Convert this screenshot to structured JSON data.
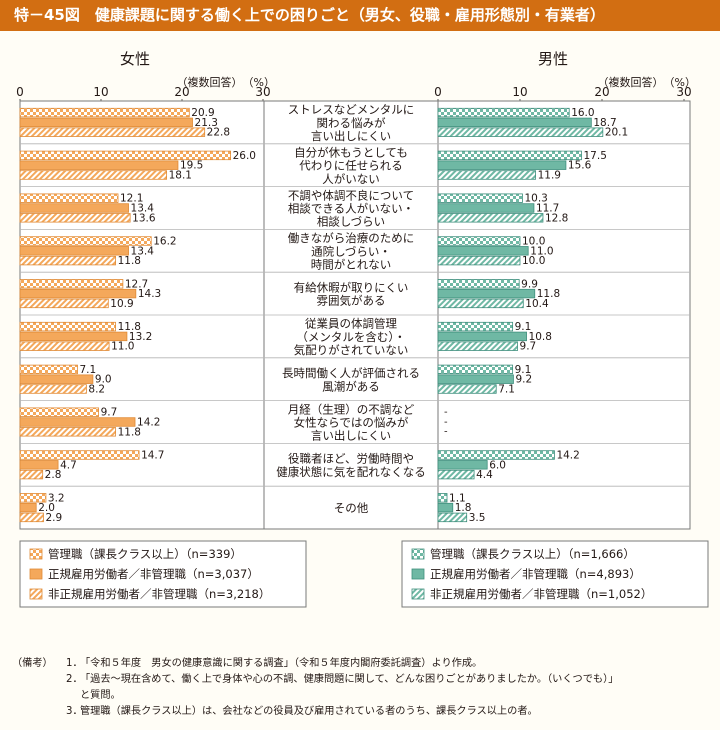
{
  "title": "特－45図　健康課題に関する働く上での困りごと（男女、役職・雇用形態別・有業者）",
  "colors": {
    "title_bg": "#d26e12",
    "female_dark": "#f4a85b",
    "female_light": "#fbd5a8",
    "female_border": "#e08a35",
    "male_dark": "#6fb8a4",
    "male_light": "#c6e6dc",
    "male_border": "#3f8f7d",
    "panel_border": "#7a7a7a"
  },
  "chart_data": {
    "type": "bar",
    "orientation": "horizontal",
    "axis_unit": "（複数回答）　（%）",
    "xlim": [
      0,
      30
    ],
    "ticks": [
      0,
      10,
      20,
      30
    ],
    "categories": [
      [
        "ストレスなどメンタルに",
        "関わる悩みが",
        "言い出しにくい"
      ],
      [
        "自分が休もうとしても",
        "代わりに任せられる",
        "人がいない"
      ],
      [
        "不調や体調不良について",
        "相談できる人がいない・",
        "相談しづらい"
      ],
      [
        "働きながら治療のために",
        "通院しづらい・",
        "時間がとれない"
      ],
      [
        "有給休暇が取りにくい",
        "雰囲気がある"
      ],
      [
        "従業員の体調管理",
        "（メンタルを含む）・",
        "気配りがされていない"
      ],
      [
        "長時間働く人が評価される",
        "風潮がある"
      ],
      [
        "月経（生理）の不調など",
        "女性ならではの悩みが",
        "言い出しにくい"
      ],
      [
        "役職者ほど、労働時間や",
        "健康状態に気を配れなくなる"
      ],
      [
        "その他"
      ]
    ],
    "panels": [
      {
        "label": "女性",
        "series": [
          {
            "name": "管理職（課長クラス以上）（n=339）",
            "pattern": "check",
            "values": [
              20.9,
              26.0,
              12.1,
              16.2,
              12.7,
              11.8,
              7.1,
              9.7,
              14.7,
              3.2
            ]
          },
          {
            "name": "正規雇用労働者／非管理職（n=3,037）",
            "pattern": "solid",
            "values": [
              21.3,
              19.5,
              13.4,
              13.4,
              14.3,
              13.2,
              9.0,
              14.2,
              4.7,
              2.0
            ]
          },
          {
            "name": "非正規雇用労働者／非管理職（n=3,218）",
            "pattern": "diagonal",
            "values": [
              22.8,
              18.1,
              13.6,
              11.8,
              10.9,
              11.0,
              8.2,
              11.8,
              2.8,
              2.9
            ]
          }
        ]
      },
      {
        "label": "男性",
        "series": [
          {
            "name": "管理職（課長クラス以上）（n=1,666）",
            "pattern": "check",
            "values": [
              16.0,
              17.5,
              10.3,
              10.0,
              9.9,
              9.1,
              9.1,
              null,
              14.2,
              1.1
            ]
          },
          {
            "name": "正規雇用労働者／非管理職（n=4,893）",
            "pattern": "solid",
            "values": [
              18.7,
              15.6,
              11.7,
              11.0,
              11.8,
              10.8,
              9.2,
              null,
              6.0,
              1.8
            ]
          },
          {
            "name": "非正規雇用労働者／非管理職（n=1,052）",
            "pattern": "diagonal",
            "values": [
              20.1,
              11.9,
              12.8,
              10.0,
              10.4,
              9.7,
              7.1,
              null,
              4.4,
              3.5
            ]
          }
        ]
      }
    ],
    "missing_label": "-"
  },
  "notes": {
    "prefix": "（備考）",
    "items": [
      {
        "num": "1．",
        "lines": [
          "「令和５年度　男女の健康意識に関する調査」（令和５年度内閣府委託調査）より作成。"
        ]
      },
      {
        "num": "2．",
        "lines": [
          "「過去～現在含めて、働く上で身体や心の不調、健康問題に関して、どんな困りごとがありましたか。（いくつでも）」",
          "と質問。"
        ]
      },
      {
        "num": "3．",
        "lines": [
          "管理職（課長クラス以上）は、会社などの役員及び雇用されている者のうち、課長クラス以上の者。"
        ]
      }
    ]
  }
}
